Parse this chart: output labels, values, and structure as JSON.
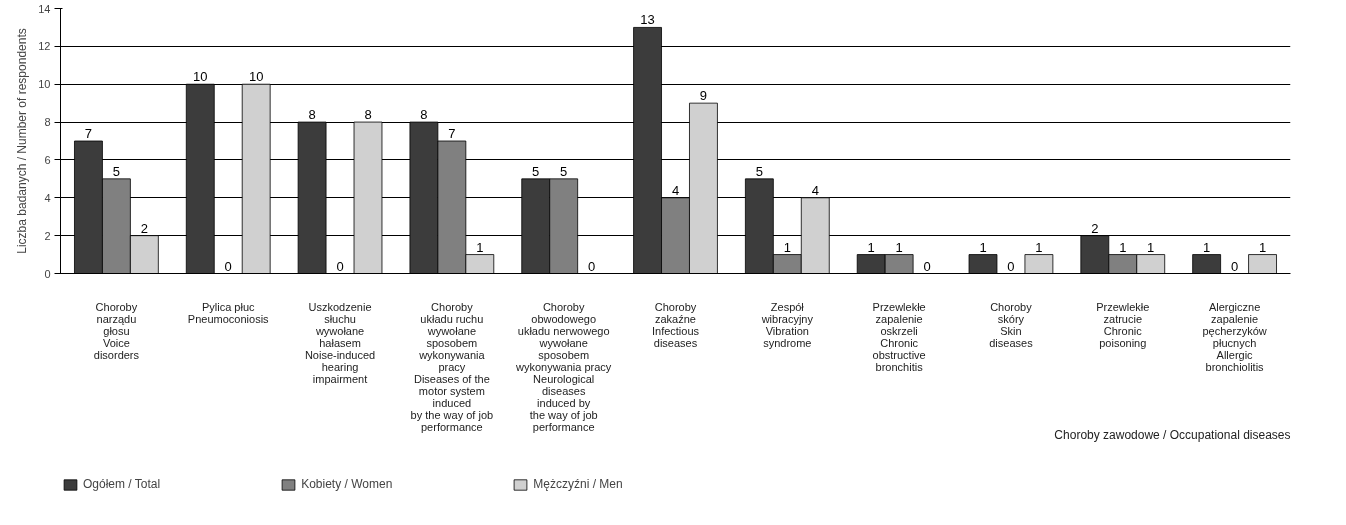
{
  "chart_data": {
    "type": "bar",
    "xlabel": "Choroby zawodowe / Occupational diseases",
    "ylabel": "Liczba badanych / Number of respondents",
    "categories": [
      "Choroby\nnarządu\ngłosu\nVoice\ndisorders",
      "Pylica płuc\nPneumoconiosis",
      "Uszkodzenie\nsłuchu\nwywołane\nhałasem\nNoise-induced\nhearing\nimpairment",
      "Choroby\nukładu ruchu\nwywołane\nsposobem\nwykonywania\npracy\nDiseases of the\nmotor system\ninduced\nby the way of job\nperformance",
      "Choroby\nobwodowego\nukładu nerwowego\nwywołane\nsposobem\nwykonywania pracy\nNeurological\ndiseases\ninduced by\nthe way of job\nperformance",
      "Choroby\nzakaźne\nInfectious\ndiseases",
      "Zespół\nwibracyjny\nVibration\nsyndrome",
      "Przewlekłe\nzapalenie\noskrzeli\nChronic\nobstructive\nbronchitis",
      "Choroby\nskóry\nSkin\ndiseases",
      "Przewlekłe\nzatrucie\nChronic\npoisoning",
      "Alergiczne\nzapalenie\npęcherzyków\npłucnych\nAllergic\nbronchiolitis"
    ],
    "series": [
      {
        "name": "Ogółem / Total",
        "color": "#3c3c3c",
        "values": [
          7,
          10,
          8,
          8,
          5,
          13,
          5,
          1,
          1,
          2,
          1
        ]
      },
      {
        "name": "Kobiety / Women",
        "color": "#808080",
        "values": [
          5,
          0,
          0,
          7,
          5,
          4,
          1,
          1,
          0,
          1,
          0
        ]
      },
      {
        "name": "Mężczyźni / Men",
        "color": "#d0d0d0",
        "values": [
          2,
          10,
          8,
          1,
          0,
          9,
          4,
          0,
          1,
          1,
          1
        ]
      }
    ],
    "ylim": [
      0,
      14
    ],
    "yticks": [
      0,
      2,
      4,
      6,
      8,
      10,
      12,
      14
    ],
    "grid": "y",
    "legend": "bottom left",
    "data_labels": true
  }
}
